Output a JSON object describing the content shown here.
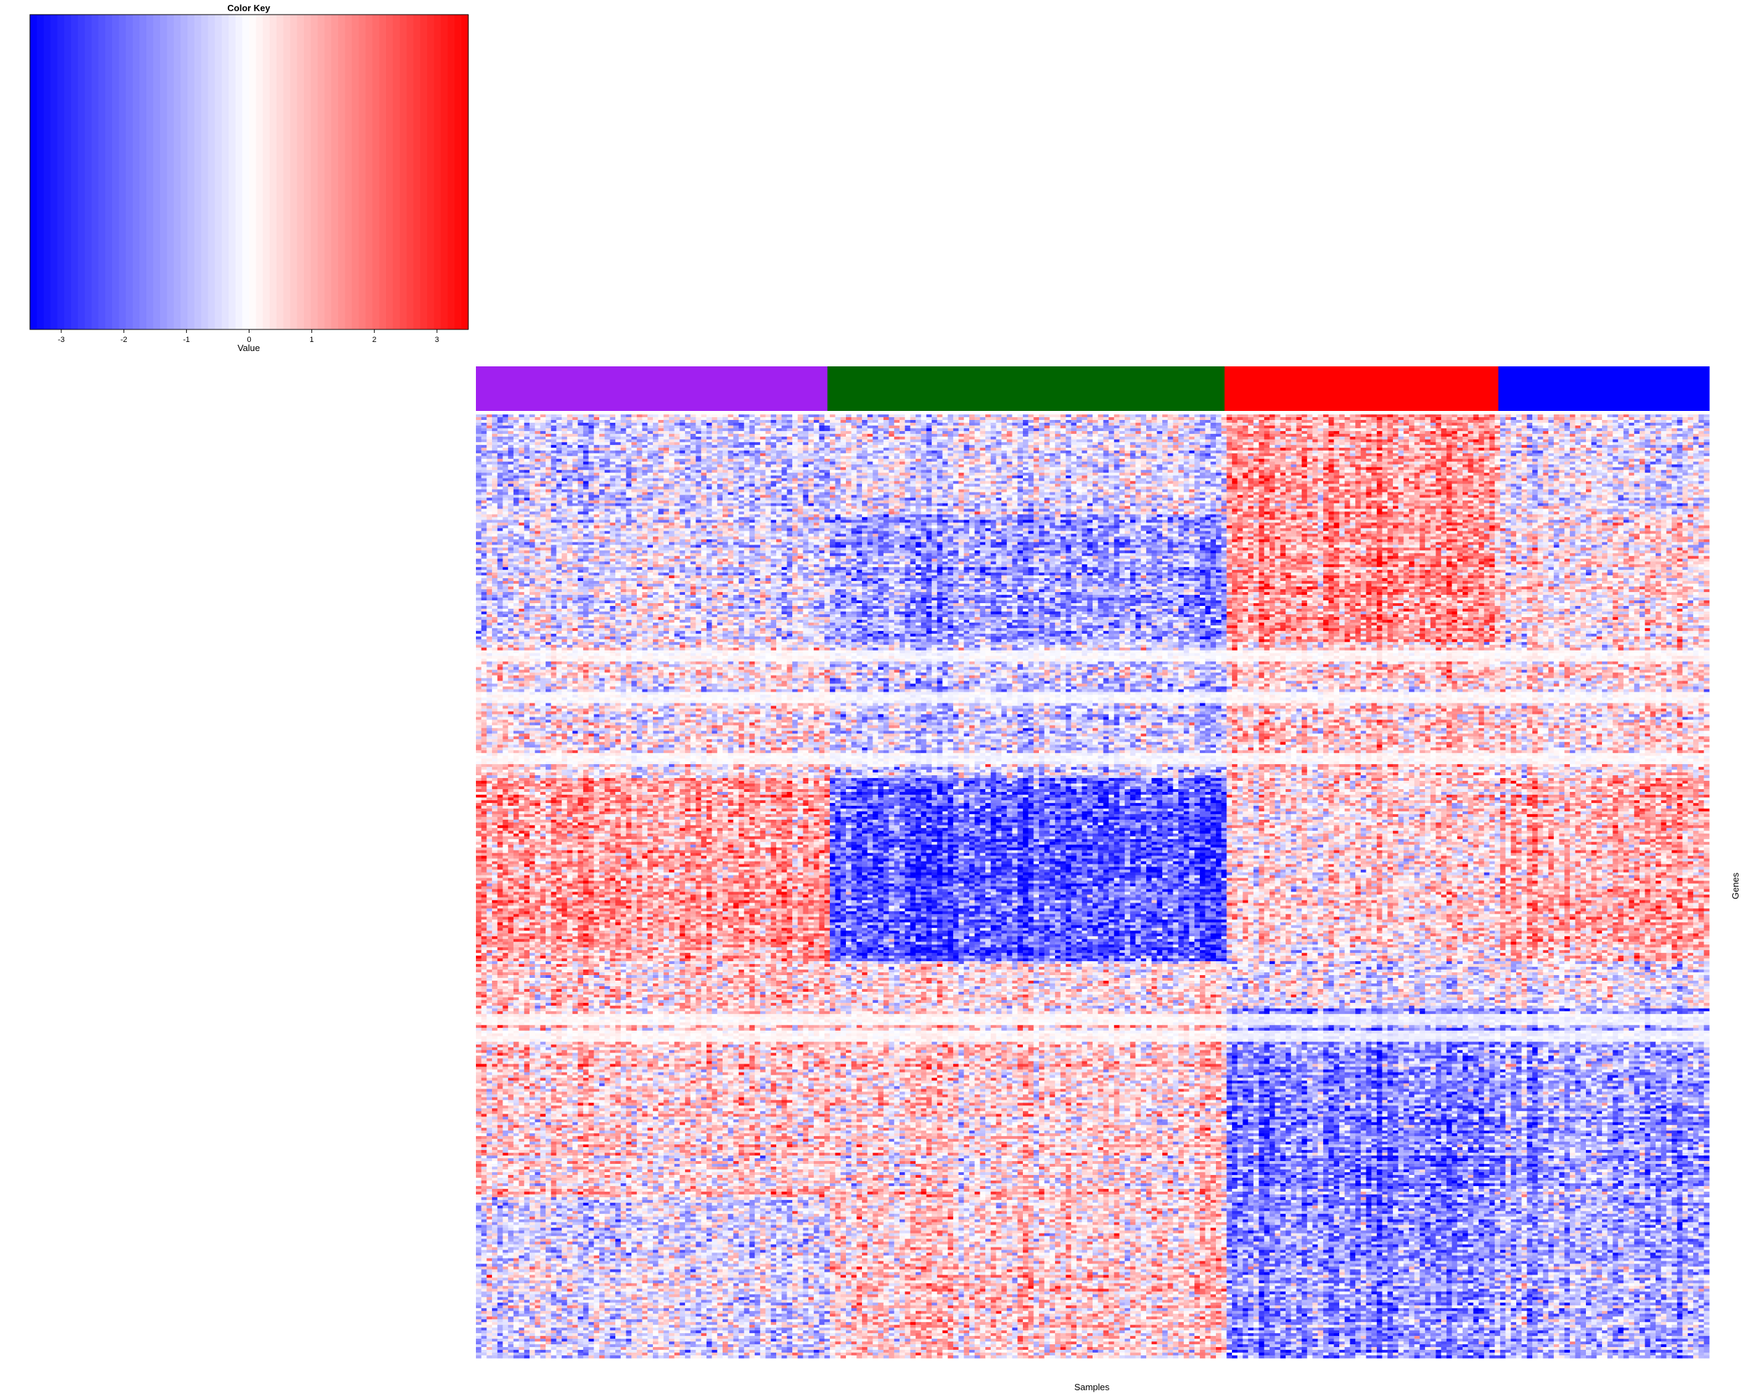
{
  "chart_data": {
    "type": "heatmap",
    "color_key": {
      "title": "Color Key",
      "xlabel": "Value",
      "range": [
        -3.5,
        3.5
      ],
      "ticks": [
        -3,
        -2,
        -1,
        0,
        1,
        2,
        3
      ],
      "tick_labels": [
        "-3",
        "-2",
        "-1",
        "0",
        "1",
        "2",
        "3"
      ],
      "low_color": "#0000ff",
      "mid_color": "#ffffff",
      "high_color": "#ff0000"
    },
    "xlabel": "Samples",
    "ylabel": "Genes",
    "column_groups": [
      {
        "color": "#a020f0",
        "fraction": 0.285
      },
      {
        "color": "#006400",
        "fraction": 0.322
      },
      {
        "color": "#ff0000",
        "fraction": 0.222
      },
      {
        "color": "#0000ff",
        "fraction": 0.171
      }
    ],
    "row_blocks": [
      {
        "fraction": 0.105,
        "group_means": [
          -0.6,
          -0.3,
          1.4,
          -0.2
        ]
      },
      {
        "fraction": 0.135,
        "group_means": [
          -0.3,
          -1.3,
          1.5,
          0.3
        ]
      },
      {
        "fraction": 0.145,
        "group_means": [
          0.2,
          -0.6,
          0.6,
          0.3
        ]
      },
      {
        "fraction": 0.193,
        "group_means": [
          1.4,
          -2.2,
          0.5,
          1.1
        ]
      },
      {
        "fraction": 0.05,
        "group_means": [
          0.5,
          0.2,
          -0.4,
          -0.2
        ]
      },
      {
        "fraction": 0.202,
        "group_means": [
          0.6,
          0.5,
          -1.7,
          -1.2
        ]
      },
      {
        "fraction": 0.17,
        "group_means": [
          -0.4,
          0.6,
          -1.5,
          -1.0
        ]
      }
    ],
    "pale_row_bands": [
      0.255,
      0.3,
      0.365,
      0.64,
      0.66
    ],
    "n_rows": 340,
    "n_cols": 230
  }
}
